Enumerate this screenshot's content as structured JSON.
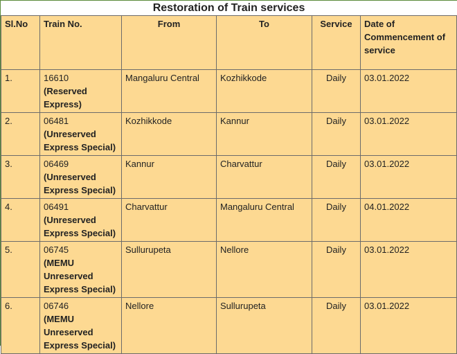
{
  "table": {
    "title": "Restoration of Train services",
    "headers": [
      "Sl.No",
      "Train No.",
      "From",
      "To",
      "Service",
      "Date of Commencement of service"
    ],
    "rows": [
      {
        "sl": "1.",
        "train_no": "16610",
        "train_desc": "(Reserved Express)",
        "from": "Mangaluru Central",
        "to": "Kozhikkode",
        "service": "Daily",
        "date": "03.01.2022"
      },
      {
        "sl": "2.",
        "train_no": "06481",
        "train_desc": "(Unreserved Express Special)",
        "from": "Kozhikkode",
        "to": "Kannur",
        "service": "Daily",
        "date": "03.01.2022"
      },
      {
        "sl": "3.",
        "train_no": "06469",
        "train_desc": "(Unreserved Express Special)",
        "from": "Kannur",
        "to": "Charvattur",
        "service": "Daily",
        "date": "03.01.2022"
      },
      {
        "sl": "4.",
        "train_no": "06491",
        "train_desc": "(Unreserved Express Special)",
        "from": "Charvattur",
        "to": "Mangaluru Central",
        "service": "Daily",
        "date": "04.01.2022"
      },
      {
        "sl": "5.",
        "train_no": "06745",
        "train_desc": "(MEMU Unreserved Express Special)",
        "from": "Sullurupeta",
        "to": "Nellore",
        "service": "Daily",
        "date": "03.01.2022"
      },
      {
        "sl": "6.",
        "train_no": "06746",
        "train_desc": "(MEMU Unreserved Express Special)",
        "from": "Nellore",
        "to": "Sullurupeta",
        "service": "Daily",
        "date": "03.01.2022"
      }
    ]
  }
}
